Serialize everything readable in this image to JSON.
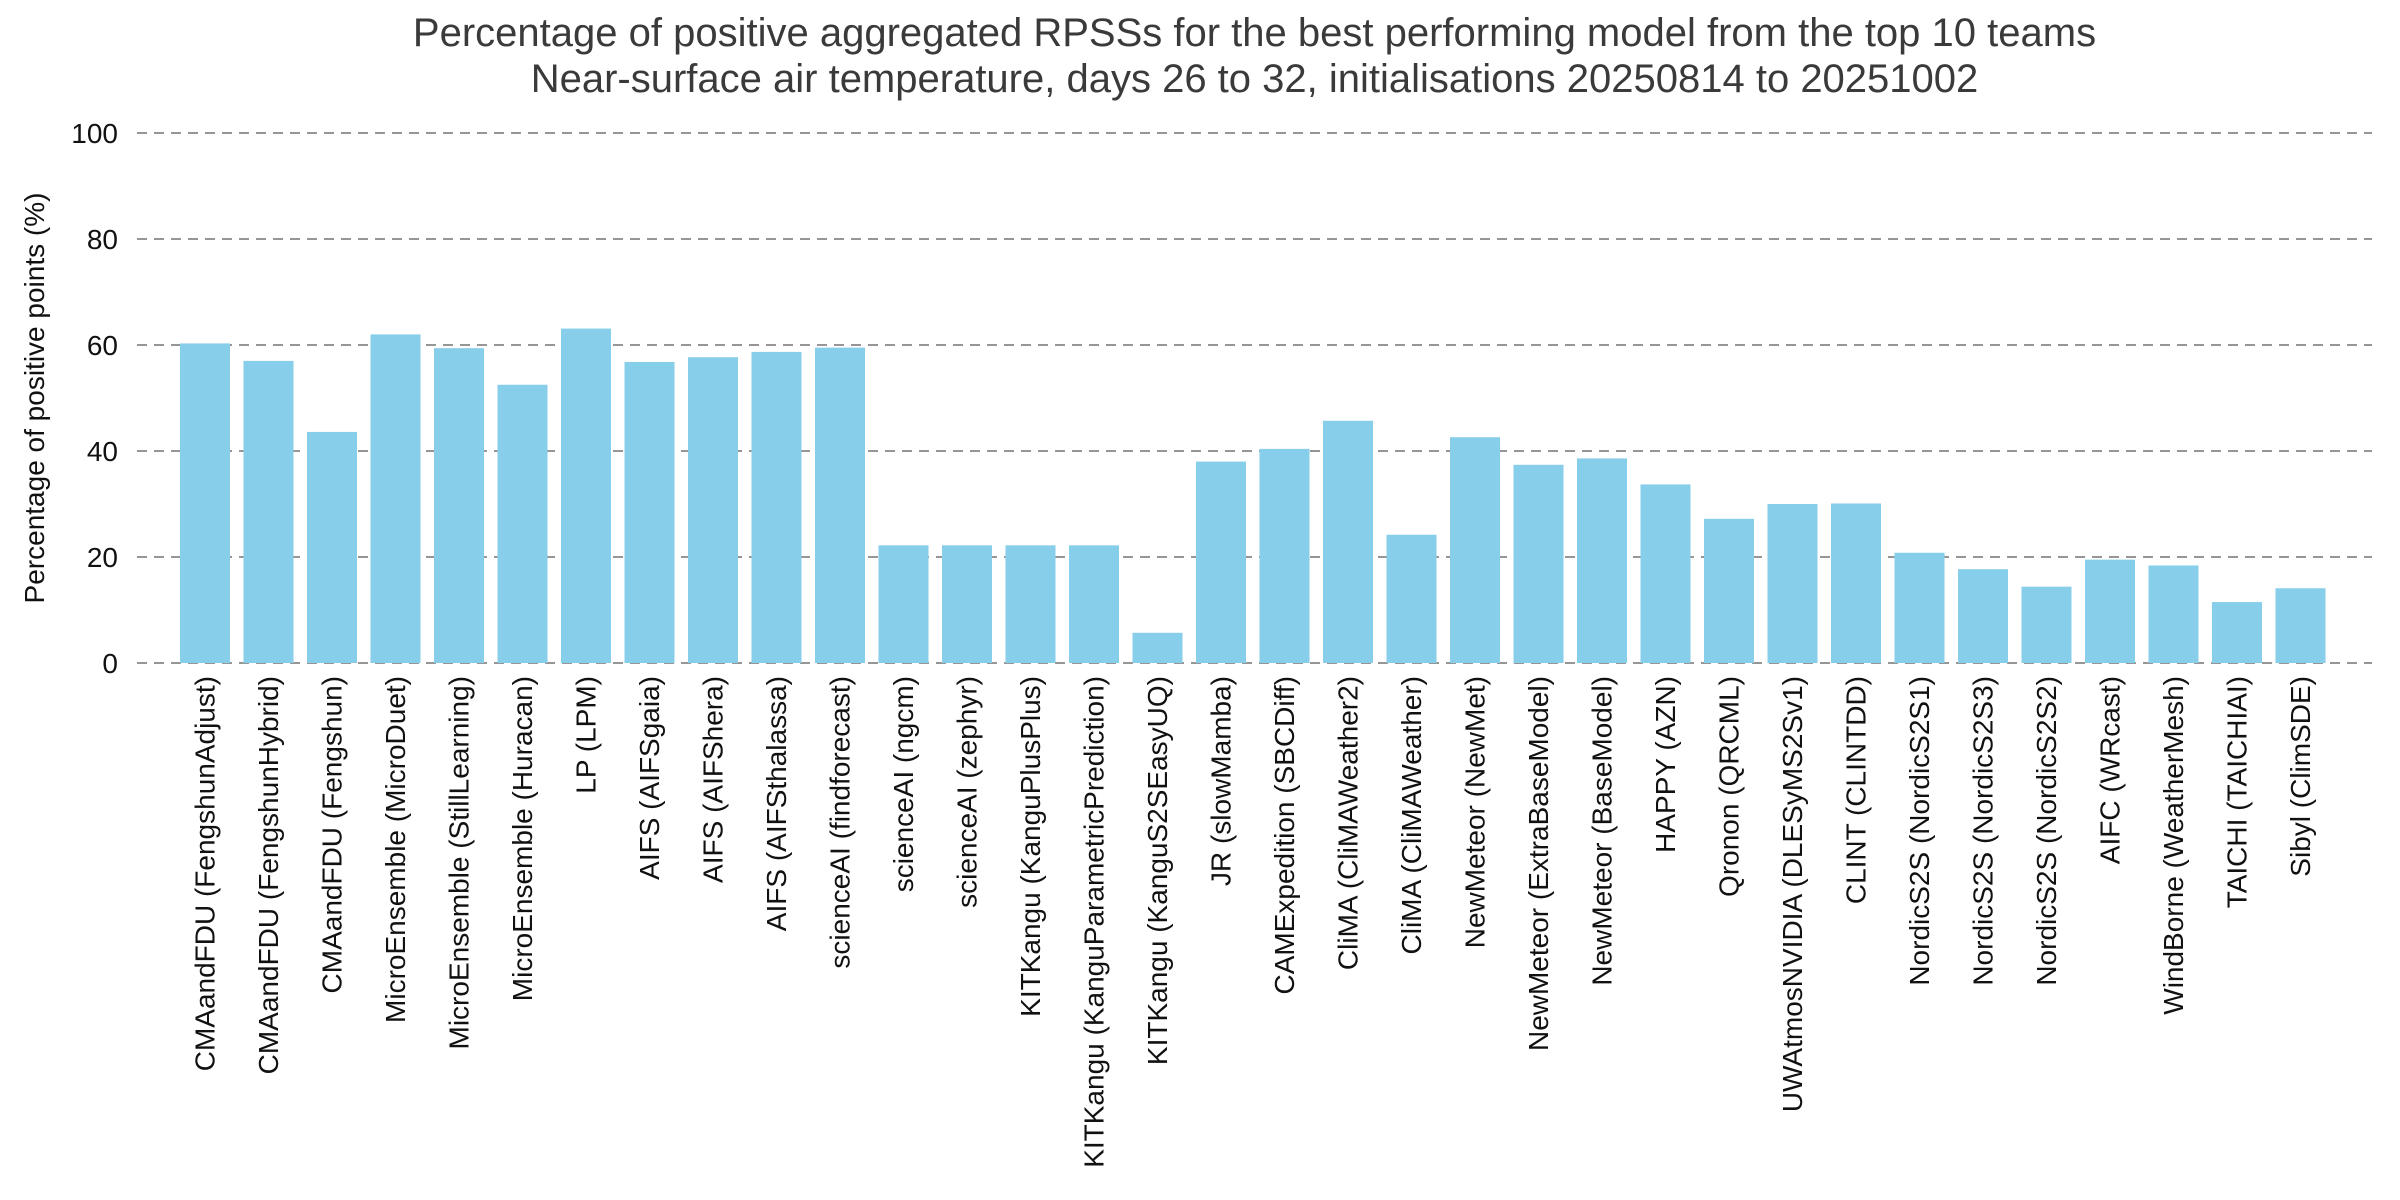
{
  "chart_data": {
    "type": "bar",
    "title": "Percentage of positive aggregated RPSSs for the best performing model from the top 10 teams",
    "subtitle": "Near-surface air temperature, days 26 to 32, initialisations 20250814 to 20251002",
    "ylabel": "Percentage of positive points (%)",
    "xlabel": "",
    "ylim": [
      0,
      100
    ],
    "yticks": [
      0,
      20,
      40,
      60,
      80,
      100
    ],
    "grid": "horizontal-dashed",
    "legend": "none",
    "bar_color": "#87CEEB",
    "grid_color": "#969696",
    "title_color": "#3a3a3a",
    "tick_color": "#111111",
    "categories": [
      "CMAandFDU (FengshunAdjust)",
      "CMAandFDU (FengshunHybrid)",
      "CMAandFDU (Fengshun)",
      "MicroEnsemble (MicroDuet)",
      "MicroEnsemble (StillLearning)",
      "MicroEnsemble (Huracan)",
      "LP (LPM)",
      "AIFS (AIFSgaia)",
      "AIFS (AIFShera)",
      "AIFS (AIFSthalassa)",
      "scienceAI (findforecast)",
      "scienceAI (ngcm)",
      "scienceAI (zephyr)",
      "KITKangu (KanguPlusPlus)",
      "KITKangu (KanguParametricPrediction)",
      "KITKangu (KanguS2SEasyUQ)",
      "JR (slowMamba)",
      "CAMExpedition (SBCDiff)",
      "CliMA (CliMAWeather2)",
      "CliMA (CliMAWeather)",
      "NewMeteor (NewMet)",
      "NewMeteor (ExtraBaseModel)",
      "NewMeteor (BaseModel)",
      "HAPPY (AZN)",
      "Qronon (QRCML)",
      "UWAtmosNVIDIA (DLESyMS2Sv1)",
      "CLINT (CLINTDD)",
      "NordicS2S (NordicS2S1)",
      "NordicS2S (NordicS2S3)",
      "NordicS2S (NordicS2S2)",
      "AIFC (WRcast)",
      "WindBorne (WeatherMesh)",
      "TAICHI (TAICHIAI)",
      "Sibyl (ClimSDE)"
    ],
    "values": [
      60.3,
      57.0,
      43.6,
      62.0,
      59.4,
      52.5,
      63.1,
      56.8,
      57.7,
      58.7,
      59.5,
      22.2,
      22.2,
      22.2,
      22.2,
      5.7,
      38.0,
      40.4,
      45.7,
      24.2,
      42.6,
      37.4,
      38.6,
      33.7,
      27.2,
      30.0,
      30.1,
      20.8,
      17.7,
      14.4,
      19.5,
      18.4,
      11.5,
      14.1
    ]
  }
}
